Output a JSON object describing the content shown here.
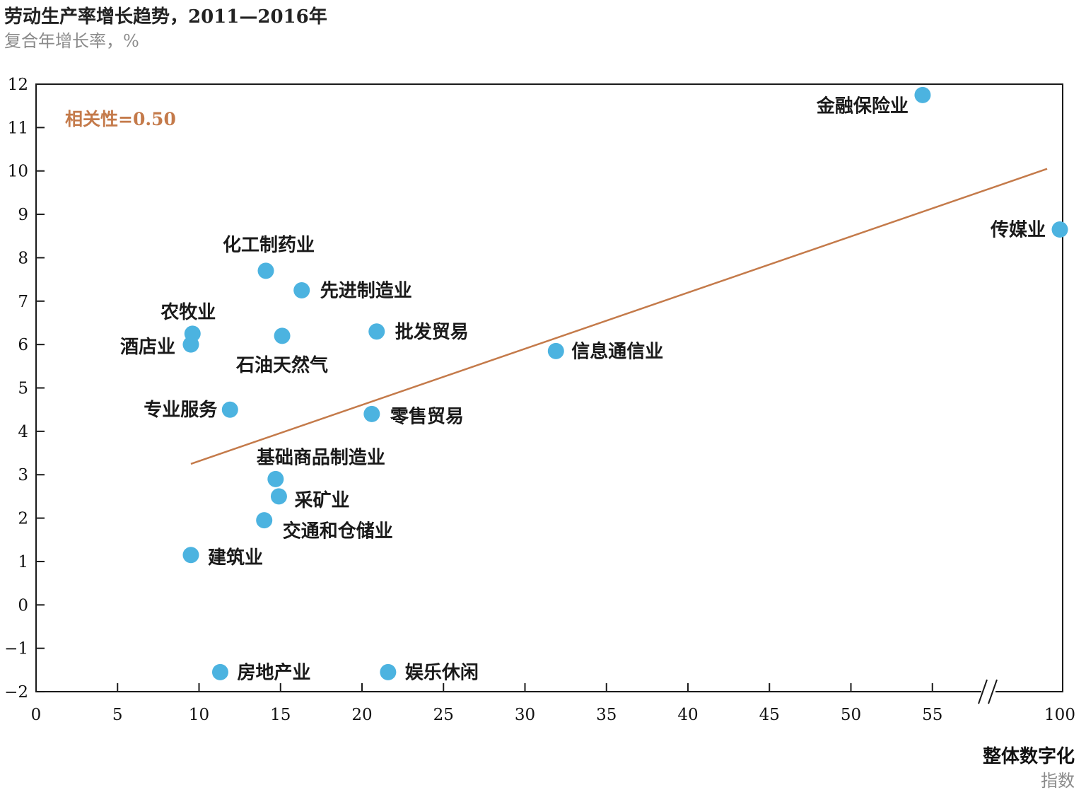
{
  "chart_data": {
    "type": "scatter",
    "title": "劳动生产率增长趋势，2011—2016年",
    "subtitle": "复合年增长率，%",
    "xlabel": "整体数字化",
    "xlabel_sub": "指数",
    "correlation_label": "相关性=0.50",
    "colors": {
      "points": "#4cb3e0",
      "trendline": "#c47a4a",
      "correlation": "#c47a4a",
      "axis": "#1a1a1a"
    },
    "grid": false,
    "x_axis_break": {
      "after": 55,
      "before": 100
    },
    "x_ticks": [
      "0",
      "5",
      "10",
      "15",
      "20",
      "25",
      "30",
      "35",
      "40",
      "45",
      "50",
      "55",
      "100"
    ],
    "y_ticks": [
      "12",
      "11",
      "10",
      "9",
      "8",
      "7",
      "6",
      "5",
      "4",
      "3",
      "2",
      "1",
      "0",
      "−1",
      "−2"
    ],
    "xlim": [
      0,
      100
    ],
    "ylim": [
      -2,
      12
    ],
    "trendline": {
      "x": [
        9.5,
        100
      ],
      "y": [
        3.25,
        10.15
      ]
    },
    "points": [
      {
        "label": "金融保险业",
        "x": 54.4,
        "y": 11.75
      },
      {
        "label": "传媒业",
        "x": 100,
        "y": 8.65
      },
      {
        "label": "化工制药业",
        "x": 14.1,
        "y": 7.7
      },
      {
        "label": "先进制造业",
        "x": 16.3,
        "y": 7.25
      },
      {
        "label": "农牧业",
        "x": 9.6,
        "y": 6.25
      },
      {
        "label": "酒店业",
        "x": 9.5,
        "y": 6.0
      },
      {
        "label": "石油天然气",
        "x": 15.1,
        "y": 6.2
      },
      {
        "label": "批发贸易",
        "x": 20.9,
        "y": 6.3
      },
      {
        "label": "信息通信业",
        "x": 31.9,
        "y": 5.85
      },
      {
        "label": "专业服务",
        "x": 11.9,
        "y": 4.5
      },
      {
        "label": "零售贸易",
        "x": 20.6,
        "y": 4.4
      },
      {
        "label": "基础商品制造业",
        "x": 14.7,
        "y": 2.9
      },
      {
        "label": "采矿业",
        "x": 14.9,
        "y": 2.5
      },
      {
        "label": "交通和仓储业",
        "x": 14.0,
        "y": 1.95
      },
      {
        "label": "建筑业",
        "x": 9.5,
        "y": 1.15
      },
      {
        "label": "房地产业",
        "x": 11.3,
        "y": -1.55
      },
      {
        "label": "娱乐休闲",
        "x": 21.6,
        "y": -1.55
      }
    ]
  }
}
